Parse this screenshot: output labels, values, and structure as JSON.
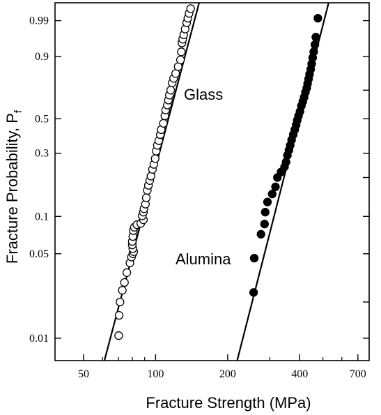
{
  "chart_data": {
    "type": "scatter",
    "xlabel": "Fracture Strength (MPa)",
    "ylabel": "Fracture Probability, P",
    "ylabel_subscript": "f",
    "x_scale": "log",
    "y_scale": "weibull",
    "xlim": [
      38,
      780
    ],
    "ylim": [
      0.0065,
      0.9985
    ],
    "x_ticks": [
      50,
      100,
      200,
      400,
      700
    ],
    "x_tick_labels": [
      "50",
      "100",
      "200",
      "400",
      "700"
    ],
    "x_minor_ticks": [
      60,
      70,
      80,
      90,
      300,
      500,
      600
    ],
    "y_ticks": [
      0.01,
      0.05,
      0.1,
      0.3,
      0.5,
      0.9,
      0.99
    ],
    "y_tick_labels": [
      "0.01",
      "0.05",
      "0.1",
      "0.3",
      "0.5",
      "0.9",
      "0.99"
    ],
    "y_right_ticks": [
      0.01,
      0.02,
      0.05,
      0.1,
      0.2,
      0.3,
      0.5,
      0.7,
      0.9,
      0.99
    ],
    "grid": false,
    "series": [
      {
        "name": "Glass",
        "marker": "open-circle",
        "fit_line": {
          "x": [
            61.1,
            152.0
          ],
          "y": [
            0.0065,
            0.9985
          ]
        },
        "points": [
          [
            70.1,
            0.0105
          ],
          [
            70.4,
            0.0155
          ],
          [
            71.0,
            0.02
          ],
          [
            72.6,
            0.025
          ],
          [
            74.1,
            0.029
          ],
          [
            75.8,
            0.035
          ],
          [
            78.1,
            0.042
          ],
          [
            79.3,
            0.047
          ],
          [
            80.3,
            0.05
          ],
          [
            81.0,
            0.052
          ],
          [
            80.3,
            0.055
          ],
          [
            79.9,
            0.059
          ],
          [
            79.9,
            0.063
          ],
          [
            80.3,
            0.069
          ],
          [
            80.7,
            0.077
          ],
          [
            81.5,
            0.082
          ],
          [
            83.5,
            0.086
          ],
          [
            86.7,
            0.088
          ],
          [
            88.9,
            0.094
          ],
          [
            87.9,
            0.101
          ],
          [
            88.9,
            0.108
          ],
          [
            89.4,
            0.115
          ],
          [
            90.7,
            0.125
          ],
          [
            91.4,
            0.14
          ],
          [
            92.3,
            0.16
          ],
          [
            93.3,
            0.175
          ],
          [
            94.5,
            0.19
          ],
          [
            95.6,
            0.205
          ],
          [
            97.0,
            0.23
          ],
          [
            98.3,
            0.25
          ],
          [
            99.6,
            0.275
          ],
          [
            100.5,
            0.31
          ],
          [
            101.7,
            0.34
          ],
          [
            103.1,
            0.365
          ],
          [
            104.6,
            0.4
          ],
          [
            105.5,
            0.43
          ],
          [
            107.8,
            0.47
          ],
          [
            109.3,
            0.52
          ],
          [
            110.1,
            0.56
          ],
          [
            112.0,
            0.595
          ],
          [
            113.1,
            0.63
          ],
          [
            114.2,
            0.665
          ],
          [
            115.6,
            0.7
          ],
          [
            117.3,
            0.75
          ],
          [
            118.9,
            0.78
          ],
          [
            121.3,
            0.81
          ],
          [
            124.2,
            0.85
          ],
          [
            127.0,
            0.885
          ],
          [
            128.0,
            0.92
          ],
          [
            128.8,
            0.95
          ],
          [
            129.8,
            0.96
          ],
          [
            131.1,
            0.97
          ],
          [
            132.8,
            0.98
          ],
          [
            134.8,
            0.988
          ],
          [
            136.4,
            0.992
          ],
          [
            138.0,
            0.995
          ],
          [
            140.1,
            0.997
          ]
        ]
      },
      {
        "name": "Alumina",
        "marker": "filled-circle",
        "fit_line": {
          "x": [
            219.1,
            528.0
          ],
          "y": [
            0.0065,
            0.9985
          ]
        },
        "points": [
          [
            256.6,
            0.024
          ],
          [
            258.2,
            0.046
          ],
          [
            275.5,
            0.072
          ],
          [
            285.1,
            0.087
          ],
          [
            287.1,
            0.108
          ],
          [
            293.2,
            0.13
          ],
          [
            306.9,
            0.15
          ],
          [
            316.7,
            0.17
          ],
          [
            322.5,
            0.2
          ],
          [
            334.2,
            0.22
          ],
          [
            345.6,
            0.24
          ],
          [
            350.8,
            0.26
          ],
          [
            355.1,
            0.29
          ],
          [
            360.6,
            0.315
          ],
          [
            365.2,
            0.34
          ],
          [
            370.1,
            0.37
          ],
          [
            375.8,
            0.4
          ],
          [
            381.4,
            0.43
          ],
          [
            386.6,
            0.46
          ],
          [
            390.4,
            0.49
          ],
          [
            395.4,
            0.52
          ],
          [
            401.0,
            0.55
          ],
          [
            406.3,
            0.59
          ],
          [
            412.2,
            0.62
          ],
          [
            417.2,
            0.65
          ],
          [
            422.6,
            0.685
          ],
          [
            427.8,
            0.715
          ],
          [
            431.3,
            0.745
          ],
          [
            435.5,
            0.775
          ],
          [
            439.6,
            0.805
          ],
          [
            444.5,
            0.835
          ],
          [
            448.7,
            0.865
          ],
          [
            453.1,
            0.895
          ],
          [
            457.5,
            0.92
          ],
          [
            462.8,
            0.945
          ],
          [
            467.0,
            0.965
          ],
          [
            476.2,
            0.992
          ]
        ]
      }
    ],
    "annotations": [
      {
        "text": "Glass",
        "series": "Glass"
      },
      {
        "text": "Alumina",
        "series": "Alumina"
      }
    ]
  }
}
